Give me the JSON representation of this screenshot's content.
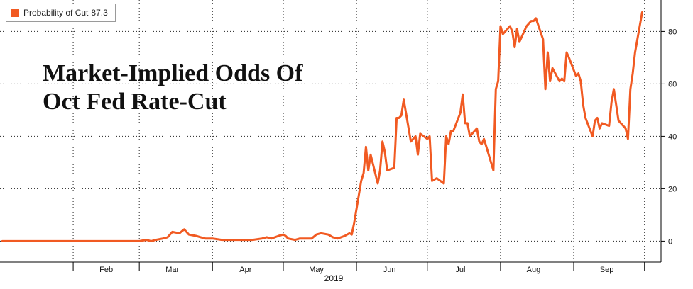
{
  "legend": {
    "label": "Probability of Cut",
    "value": "87.3",
    "color": "#f15a22"
  },
  "title_lines": [
    "Market-Implied Odds Of",
    "Oct Fed Rate-Cut"
  ],
  "chart_data": {
    "type": "line",
    "title": "Market-Implied Odds Of Oct Fed Rate-Cut",
    "xlabel": "2019",
    "ylabel": "",
    "x_tick_labels": [
      "Feb",
      "Mar",
      "Apr",
      "May",
      "Jun",
      "Jul",
      "Aug",
      "Sep"
    ],
    "y_ticks": [
      0,
      20,
      40,
      60,
      80
    ],
    "ylim": [
      -8,
      92
    ],
    "y_axis_side": "right",
    "grid": true,
    "legend_position": "top-left",
    "series": [
      {
        "name": "Probability of Cut",
        "color": "#f15a22",
        "points": [
          [
            "2019-01-02",
            0
          ],
          [
            "2019-01-15",
            0
          ],
          [
            "2019-01-30",
            0
          ],
          [
            "2019-02-10",
            0
          ],
          [
            "2019-02-25",
            0
          ],
          [
            "2019-03-01",
            0
          ],
          [
            "2019-03-04",
            0.5
          ],
          [
            "2019-03-06",
            0
          ],
          [
            "2019-03-08",
            0.5
          ],
          [
            "2019-03-11",
            1
          ],
          [
            "2019-03-13",
            1.5
          ],
          [
            "2019-03-15",
            3.5
          ],
          [
            "2019-03-18",
            3
          ],
          [
            "2019-03-20",
            4.5
          ],
          [
            "2019-03-22",
            2.5
          ],
          [
            "2019-03-25",
            2
          ],
          [
            "2019-03-27",
            1.5
          ],
          [
            "2019-03-29",
            1
          ],
          [
            "2019-04-01",
            1
          ],
          [
            "2019-04-05",
            0.5
          ],
          [
            "2019-04-10",
            0.5
          ],
          [
            "2019-04-15",
            0.5
          ],
          [
            "2019-04-18",
            0.5
          ],
          [
            "2019-04-22",
            1
          ],
          [
            "2019-04-24",
            1.5
          ],
          [
            "2019-04-26",
            1
          ],
          [
            "2019-04-29",
            2
          ],
          [
            "2019-05-01",
            2.5
          ],
          [
            "2019-05-02",
            2
          ],
          [
            "2019-05-03",
            1
          ],
          [
            "2019-05-06",
            0.5
          ],
          [
            "2019-05-08",
            1
          ],
          [
            "2019-05-10",
            1
          ],
          [
            "2019-05-13",
            1
          ],
          [
            "2019-05-15",
            2.5
          ],
          [
            "2019-05-17",
            3
          ],
          [
            "2019-05-20",
            2.5
          ],
          [
            "2019-05-22",
            1.5
          ],
          [
            "2019-05-24",
            1
          ],
          [
            "2019-05-27",
            2
          ],
          [
            "2019-05-29",
            3
          ],
          [
            "2019-05-30",
            2.5
          ],
          [
            "2019-05-31",
            7
          ],
          [
            "2019-06-03",
            23
          ],
          [
            "2019-06-04",
            26
          ],
          [
            "2019-06-05",
            36
          ],
          [
            "2019-06-06",
            27
          ],
          [
            "2019-06-07",
            33
          ],
          [
            "2019-06-10",
            22
          ],
          [
            "2019-06-11",
            27
          ],
          [
            "2019-06-12",
            38
          ],
          [
            "2019-06-13",
            34
          ],
          [
            "2019-06-14",
            27
          ],
          [
            "2019-06-17",
            28
          ],
          [
            "2019-06-18",
            47
          ],
          [
            "2019-06-19",
            47
          ],
          [
            "2019-06-20",
            48
          ],
          [
            "2019-06-21",
            54
          ],
          [
            "2019-06-24",
            38
          ],
          [
            "2019-06-25",
            39
          ],
          [
            "2019-06-26",
            40
          ],
          [
            "2019-06-27",
            33
          ],
          [
            "2019-06-28",
            41
          ],
          [
            "2019-07-01",
            39
          ],
          [
            "2019-07-02",
            40
          ],
          [
            "2019-07-03",
            23
          ],
          [
            "2019-07-05",
            24
          ],
          [
            "2019-07-08",
            22
          ],
          [
            "2019-07-09",
            40
          ],
          [
            "2019-07-10",
            37
          ],
          [
            "2019-07-11",
            42
          ],
          [
            "2019-07-12",
            42
          ],
          [
            "2019-07-15",
            49
          ],
          [
            "2019-07-16",
            56
          ],
          [
            "2019-07-17",
            45
          ],
          [
            "2019-07-18",
            45
          ],
          [
            "2019-07-19",
            40
          ],
          [
            "2019-07-22",
            43
          ],
          [
            "2019-07-23",
            38
          ],
          [
            "2019-07-24",
            37
          ],
          [
            "2019-07-25",
            39
          ],
          [
            "2019-07-26",
            36
          ],
          [
            "2019-07-29",
            27
          ],
          [
            "2019-07-30",
            58
          ],
          [
            "2019-07-31",
            61
          ],
          [
            "2019-08-01",
            82
          ],
          [
            "2019-08-02",
            79
          ],
          [
            "2019-08-05",
            82
          ],
          [
            "2019-08-06",
            80
          ],
          [
            "2019-08-07",
            74
          ],
          [
            "2019-08-08",
            81
          ],
          [
            "2019-08-09",
            76
          ],
          [
            "2019-08-12",
            82
          ],
          [
            "2019-08-13",
            83
          ],
          [
            "2019-08-14",
            84
          ],
          [
            "2019-08-15",
            84
          ],
          [
            "2019-08-16",
            85
          ],
          [
            "2019-08-19",
            77
          ],
          [
            "2019-08-20",
            58
          ],
          [
            "2019-08-21",
            72
          ],
          [
            "2019-08-22",
            61
          ],
          [
            "2019-08-23",
            66
          ],
          [
            "2019-08-26",
            61
          ],
          [
            "2019-08-27",
            62
          ],
          [
            "2019-08-28",
            61
          ],
          [
            "2019-08-29",
            72
          ],
          [
            "2019-08-30",
            70
          ],
          [
            "2019-09-02",
            63
          ],
          [
            "2019-09-03",
            64
          ],
          [
            "2019-09-04",
            61
          ],
          [
            "2019-09-05",
            52
          ],
          [
            "2019-09-06",
            47
          ],
          [
            "2019-09-09",
            40
          ],
          [
            "2019-09-10",
            46
          ],
          [
            "2019-09-11",
            47
          ],
          [
            "2019-09-12",
            43
          ],
          [
            "2019-09-13",
            45
          ],
          [
            "2019-09-16",
            44
          ],
          [
            "2019-09-17",
            53
          ],
          [
            "2019-09-18",
            58
          ],
          [
            "2019-09-19",
            52
          ],
          [
            "2019-09-20",
            46
          ],
          [
            "2019-09-23",
            43
          ],
          [
            "2019-09-24",
            39
          ],
          [
            "2019-09-25",
            58
          ],
          [
            "2019-09-26",
            64
          ],
          [
            "2019-09-27",
            72
          ],
          [
            "2019-09-30",
            87.3
          ]
        ]
      }
    ]
  }
}
